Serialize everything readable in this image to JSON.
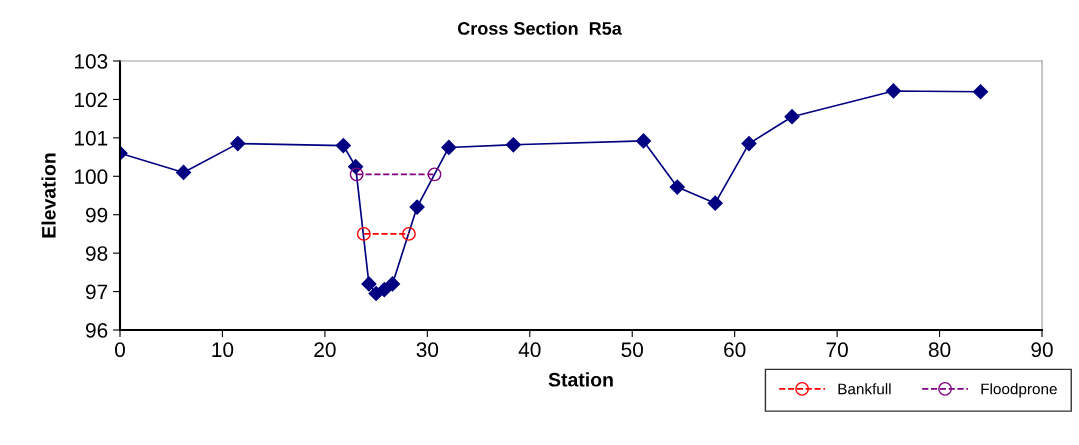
{
  "chart_data": {
    "type": "line",
    "title": "Cross Section  R5a",
    "xlabel": "Station",
    "ylabel": "Elevation",
    "xlim": [
      0,
      90
    ],
    "xticks": [
      0,
      10,
      20,
      30,
      40,
      50,
      60,
      70,
      80,
      90
    ],
    "ylim": [
      96,
      103
    ],
    "yticks": [
      96,
      97,
      98,
      99,
      100,
      101,
      102,
      103
    ],
    "grid": false,
    "legend": "bottom right",
    "series": [
      {
        "color": "#000080",
        "marker": "diamond",
        "line_style": "solid",
        "x": [
          0,
          6.2,
          11.5,
          21.8,
          23,
          24.3,
          25,
          25.8,
          26.6,
          29,
          32.1,
          38.4,
          51.1,
          54.4,
          58.1,
          61.4,
          65.6,
          75.5,
          84
        ],
        "values": [
          100.6,
          100.1,
          100.85,
          100.8,
          100.25,
          97.2,
          96.95,
          97.05,
          97.2,
          99.2,
          100.75,
          100.82,
          100.92,
          99.72,
          99.3,
          100.85,
          101.55,
          102.22,
          102.2
        ]
      },
      {
        "name": "Bankfull",
        "color": "#ff0000",
        "marker": "circle",
        "line_style": "dashed",
        "x": [
          23.8,
          28.2
        ],
        "values": [
          98.5,
          98.5
        ]
      },
      {
        "name": "Floodprone",
        "color": "#800080",
        "marker": "circle",
        "line_style": "dashed",
        "x": [
          23.1,
          30.7
        ],
        "values": [
          100.05,
          100.05
        ]
      }
    ]
  }
}
